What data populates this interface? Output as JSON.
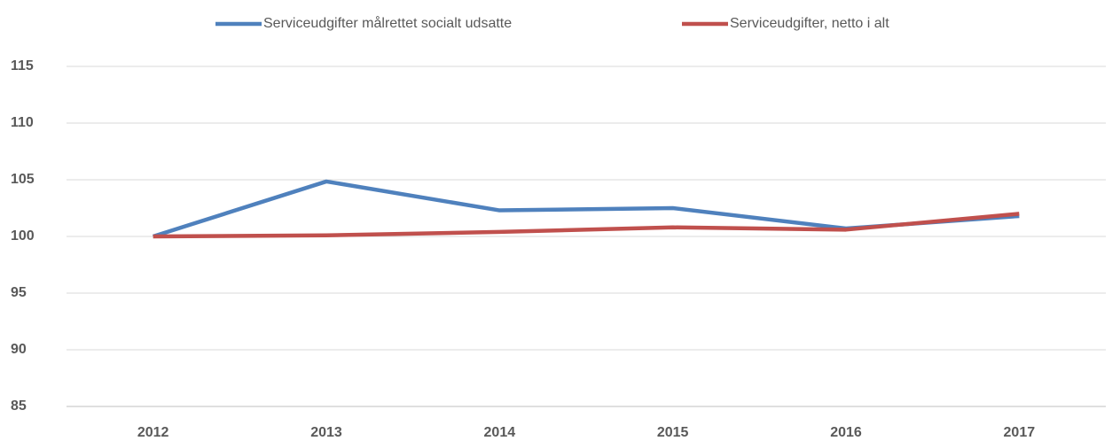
{
  "chart_data": {
    "type": "line",
    "categories": [
      "2012",
      "2013",
      "2014",
      "2015",
      "2016",
      "2017"
    ],
    "series": [
      {
        "name": "Serviceudgifter målrettet socialt udsatte",
        "color": "#4f81bd",
        "values": [
          100,
          104.85,
          102.3,
          102.5,
          100.7,
          101.8
        ]
      },
      {
        "name": "Serviceudgifter, netto i alt",
        "color": "#c0504d",
        "values": [
          100,
          100.1,
          100.4,
          100.8,
          100.6,
          102.0
        ]
      }
    ],
    "ylim": [
      85,
      115
    ],
    "yticks": [
      85,
      90,
      95,
      100,
      105,
      110,
      115
    ],
    "grid": true,
    "legend": "top"
  }
}
